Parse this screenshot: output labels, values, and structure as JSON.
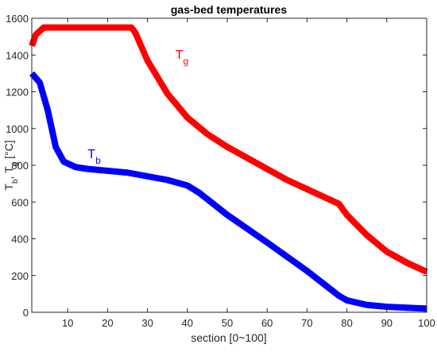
{
  "chart_data": {
    "type": "line",
    "title": "gas-bed temperatures",
    "xlabel": "section [0~100]",
    "ylabel": [
      {
        "text": "T"
      },
      {
        "text": "b",
        "sub": true
      },
      {
        "text": ", T"
      },
      {
        "text": "g",
        "sub": true
      },
      {
        "text": " [°C]"
      }
    ],
    "xlim": [
      1,
      100
    ],
    "xticks": [
      10,
      20,
      30,
      40,
      50,
      60,
      70,
      80,
      90,
      100
    ],
    "ylim": [
      0,
      1600
    ],
    "yticks": [
      0,
      200,
      400,
      600,
      800,
      1000,
      1200,
      1400,
      1600
    ],
    "grid": false,
    "series": [
      {
        "name": "Tg",
        "color": "#ff0000",
        "x": [
          1,
          2,
          4,
          10,
          20,
          26,
          27,
          30,
          35,
          40,
          45,
          50,
          55,
          60,
          65,
          70,
          75,
          78,
          80,
          85,
          90,
          95,
          100
        ],
        "values": [
          1450,
          1510,
          1550,
          1550,
          1550,
          1550,
          1520,
          1370,
          1190,
          1060,
          970,
          900,
          840,
          780,
          720,
          670,
          620,
          590,
          530,
          420,
          330,
          270,
          220
        ]
      },
      {
        "name": "Tb",
        "color": "#0000ff",
        "x": [
          1,
          3,
          5,
          7,
          9,
          12,
          15,
          20,
          25,
          30,
          35,
          40,
          43,
          50,
          60,
          70,
          78,
          80,
          85,
          90,
          95,
          100
        ],
        "values": [
          1300,
          1250,
          1100,
          900,
          820,
          790,
          780,
          770,
          760,
          740,
          720,
          690,
          650,
          530,
          380,
          225,
          90,
          65,
          40,
          30,
          25,
          20
        ]
      }
    ],
    "annotations": [
      {
        "text": "T",
        "subscript": "g",
        "x": 37,
        "y": 1380,
        "color": "#ff0000"
      },
      {
        "text": "T",
        "subscript": "b",
        "x": 15,
        "y": 840,
        "color": "#0000ff"
      }
    ]
  }
}
